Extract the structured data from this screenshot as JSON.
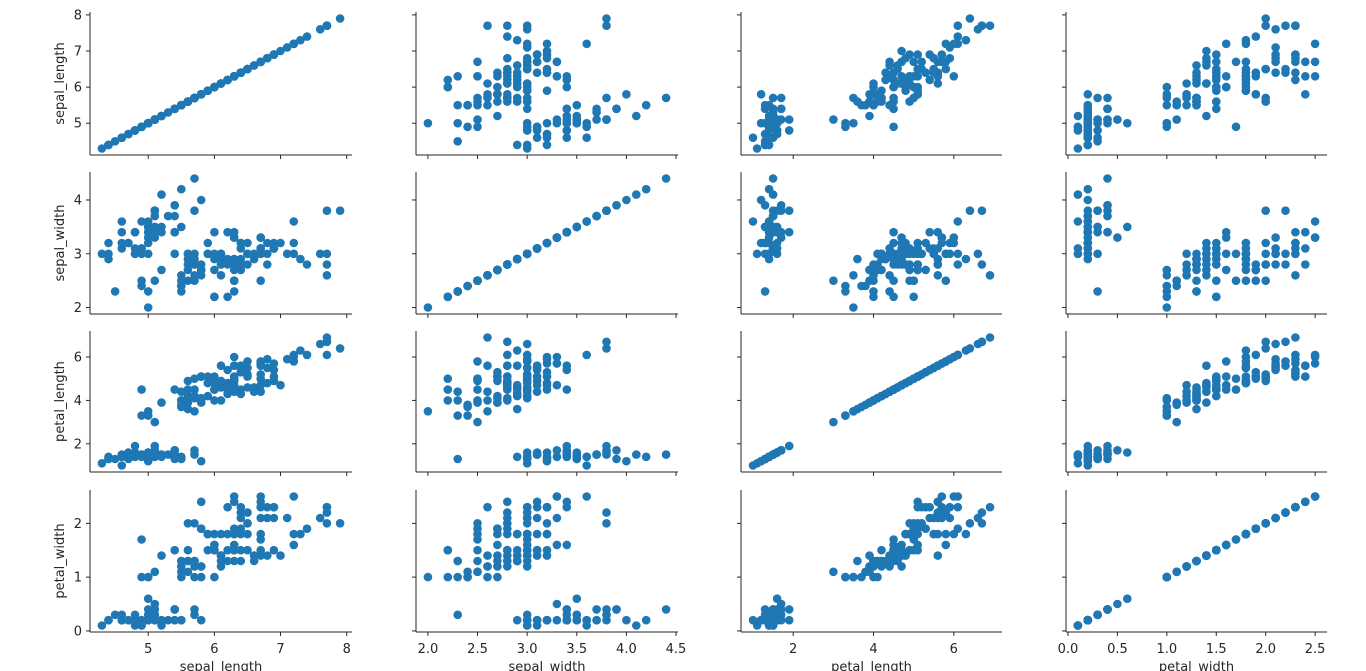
{
  "chart_data": {
    "type": "scatter",
    "layout": "pairplot",
    "variables": [
      "sepal_length",
      "sepal_width",
      "petal_length",
      "petal_width"
    ],
    "axis_labels": {
      "x": [
        "sepal_length",
        "sepal_width",
        "petal_length",
        "petal_width"
      ],
      "y": [
        "sepal_length",
        "sepal_width",
        "petal_length",
        "petal_width"
      ]
    },
    "limits": {
      "sepal_length": [
        4.12,
        8.08
      ],
      "sepal_width": [
        1.88,
        4.52
      ],
      "petal_length": [
        0.7,
        7.2
      ],
      "petal_width": [
        -0.02,
        2.62
      ]
    },
    "ticks": {
      "sepal_length": {
        "values": [
          5,
          6,
          7,
          8
        ],
        "labels": [
          "5",
          "6",
          "7",
          "8"
        ]
      },
      "sepal_width": {
        "values": [
          2.0,
          2.5,
          3.0,
          3.5,
          4.0,
          4.5
        ],
        "labels": [
          "2.0",
          "2.5",
          "3.0",
          "3.5",
          "4.0",
          "4.5"
        ]
      },
      "sepal_width_y": {
        "values": [
          2,
          3,
          4
        ],
        "labels": [
          "2",
          "3",
          "4"
        ]
      },
      "petal_length": {
        "values": [
          2,
          4,
          6
        ],
        "labels": [
          "2",
          "4",
          "6"
        ]
      },
      "petal_width": {
        "values": [
          0.0,
          0.5,
          1.0,
          1.5,
          2.0,
          2.5
        ],
        "labels": [
          "0.0",
          "0.5",
          "1.0",
          "1.5",
          "2.0",
          "2.5"
        ]
      },
      "petal_width_y": {
        "values": [
          0,
          1,
          2
        ],
        "labels": [
          "0",
          "1",
          "2"
        ]
      }
    },
    "point_color": "#1f77b4",
    "grid": false,
    "legend": "none",
    "records": [
      [
        5.1,
        3.5,
        1.4,
        0.2
      ],
      [
        4.9,
        3.0,
        1.4,
        0.2
      ],
      [
        4.7,
        3.2,
        1.3,
        0.2
      ],
      [
        4.6,
        3.1,
        1.5,
        0.2
      ],
      [
        5.0,
        3.6,
        1.4,
        0.2
      ],
      [
        5.4,
        3.9,
        1.7,
        0.4
      ],
      [
        4.6,
        3.4,
        1.4,
        0.3
      ],
      [
        5.0,
        3.4,
        1.5,
        0.2
      ],
      [
        4.4,
        2.9,
        1.4,
        0.2
      ],
      [
        4.9,
        3.1,
        1.5,
        0.1
      ],
      [
        5.4,
        3.7,
        1.5,
        0.2
      ],
      [
        4.8,
        3.4,
        1.6,
        0.2
      ],
      [
        4.8,
        3.0,
        1.4,
        0.1
      ],
      [
        4.3,
        3.0,
        1.1,
        0.1
      ],
      [
        5.8,
        4.0,
        1.2,
        0.2
      ],
      [
        5.7,
        4.4,
        1.5,
        0.4
      ],
      [
        5.4,
        3.9,
        1.3,
        0.4
      ],
      [
        5.1,
        3.5,
        1.4,
        0.3
      ],
      [
        5.7,
        3.8,
        1.7,
        0.3
      ],
      [
        5.1,
        3.8,
        1.5,
        0.3
      ],
      [
        5.4,
        3.4,
        1.7,
        0.2
      ],
      [
        5.1,
        3.7,
        1.5,
        0.4
      ],
      [
        4.6,
        3.6,
        1.0,
        0.2
      ],
      [
        5.1,
        3.3,
        1.7,
        0.5
      ],
      [
        4.8,
        3.4,
        1.9,
        0.2
      ],
      [
        5.0,
        3.0,
        1.6,
        0.2
      ],
      [
        5.0,
        3.4,
        1.6,
        0.4
      ],
      [
        5.2,
        3.5,
        1.5,
        0.2
      ],
      [
        5.2,
        3.4,
        1.4,
        0.2
      ],
      [
        4.7,
        3.2,
        1.6,
        0.2
      ],
      [
        4.8,
        3.1,
        1.6,
        0.2
      ],
      [
        5.4,
        3.4,
        1.5,
        0.4
      ],
      [
        5.2,
        4.1,
        1.5,
        0.1
      ],
      [
        5.5,
        4.2,
        1.4,
        0.2
      ],
      [
        4.9,
        3.1,
        1.5,
        0.2
      ],
      [
        5.0,
        3.2,
        1.2,
        0.2
      ],
      [
        5.5,
        3.5,
        1.3,
        0.2
      ],
      [
        4.9,
        3.6,
        1.4,
        0.1
      ],
      [
        4.4,
        3.0,
        1.3,
        0.2
      ],
      [
        5.1,
        3.4,
        1.5,
        0.2
      ],
      [
        5.0,
        3.5,
        1.3,
        0.3
      ],
      [
        4.5,
        2.3,
        1.3,
        0.3
      ],
      [
        4.4,
        3.2,
        1.3,
        0.2
      ],
      [
        5.0,
        3.5,
        1.6,
        0.6
      ],
      [
        5.1,
        3.8,
        1.9,
        0.4
      ],
      [
        4.8,
        3.0,
        1.4,
        0.3
      ],
      [
        5.1,
        3.8,
        1.6,
        0.2
      ],
      [
        4.6,
        3.2,
        1.4,
        0.2
      ],
      [
        5.3,
        3.7,
        1.5,
        0.2
      ],
      [
        5.0,
        3.3,
        1.4,
        0.2
      ],
      [
        7.0,
        3.2,
        4.7,
        1.4
      ],
      [
        6.4,
        3.2,
        4.5,
        1.5
      ],
      [
        6.9,
        3.1,
        4.9,
        1.5
      ],
      [
        5.5,
        2.3,
        4.0,
        1.3
      ],
      [
        6.5,
        2.8,
        4.6,
        1.5
      ],
      [
        5.7,
        2.8,
        4.5,
        1.3
      ],
      [
        6.3,
        3.3,
        4.7,
        1.6
      ],
      [
        4.9,
        2.4,
        3.3,
        1.0
      ],
      [
        6.6,
        2.9,
        4.6,
        1.3
      ],
      [
        5.2,
        2.7,
        3.9,
        1.4
      ],
      [
        5.0,
        2.0,
        3.5,
        1.0
      ],
      [
        5.9,
        3.0,
        4.2,
        1.5
      ],
      [
        6.0,
        2.2,
        4.0,
        1.0
      ],
      [
        6.1,
        2.9,
        4.7,
        1.4
      ],
      [
        5.6,
        2.9,
        3.6,
        1.3
      ],
      [
        6.7,
        3.1,
        4.4,
        1.4
      ],
      [
        5.6,
        3.0,
        4.5,
        1.5
      ],
      [
        5.8,
        2.7,
        4.1,
        1.0
      ],
      [
        6.2,
        2.2,
        4.5,
        1.5
      ],
      [
        5.6,
        2.5,
        3.9,
        1.1
      ],
      [
        5.9,
        3.2,
        4.8,
        1.8
      ],
      [
        6.1,
        2.8,
        4.0,
        1.3
      ],
      [
        6.3,
        2.5,
        4.9,
        1.5
      ],
      [
        6.1,
        2.8,
        4.7,
        1.2
      ],
      [
        6.4,
        2.9,
        4.3,
        1.3
      ],
      [
        6.6,
        3.0,
        4.4,
        1.4
      ],
      [
        6.8,
        2.8,
        4.8,
        1.4
      ],
      [
        6.7,
        3.0,
        5.0,
        1.7
      ],
      [
        6.0,
        2.9,
        4.5,
        1.5
      ],
      [
        5.7,
        2.6,
        3.5,
        1.0
      ],
      [
        5.5,
        2.4,
        3.8,
        1.1
      ],
      [
        5.5,
        2.4,
        3.7,
        1.0
      ],
      [
        5.8,
        2.7,
        3.9,
        1.2
      ],
      [
        6.0,
        2.7,
        5.1,
        1.6
      ],
      [
        5.4,
        3.0,
        4.5,
        1.5
      ],
      [
        6.0,
        3.4,
        4.5,
        1.6
      ],
      [
        6.7,
        3.1,
        4.7,
        1.5
      ],
      [
        6.3,
        2.3,
        4.4,
        1.3
      ],
      [
        5.6,
        3.0,
        4.1,
        1.3
      ],
      [
        5.5,
        2.5,
        4.0,
        1.3
      ],
      [
        5.5,
        2.6,
        4.4,
        1.2
      ],
      [
        6.1,
        3.0,
        4.6,
        1.4
      ],
      [
        5.8,
        2.6,
        4.0,
        1.2
      ],
      [
        5.0,
        2.3,
        3.3,
        1.0
      ],
      [
        5.6,
        2.7,
        4.2,
        1.3
      ],
      [
        5.7,
        3.0,
        4.2,
        1.2
      ],
      [
        5.7,
        2.9,
        4.2,
        1.3
      ],
      [
        6.2,
        2.9,
        4.3,
        1.3
      ],
      [
        5.1,
        2.5,
        3.0,
        1.1
      ],
      [
        5.7,
        2.8,
        4.1,
        1.3
      ],
      [
        6.3,
        3.3,
        6.0,
        2.5
      ],
      [
        5.8,
        2.7,
        5.1,
        1.9
      ],
      [
        7.1,
        3.0,
        5.9,
        2.1
      ],
      [
        6.3,
        2.9,
        5.6,
        1.8
      ],
      [
        6.5,
        3.0,
        5.8,
        2.2
      ],
      [
        7.6,
        3.0,
        6.6,
        2.1
      ],
      [
        4.9,
        2.5,
        4.5,
        1.7
      ],
      [
        7.3,
        2.9,
        6.3,
        1.8
      ],
      [
        6.7,
        2.5,
        5.8,
        1.8
      ],
      [
        7.2,
        3.6,
        6.1,
        2.5
      ],
      [
        6.5,
        3.2,
        5.1,
        2.0
      ],
      [
        6.4,
        2.7,
        5.3,
        1.9
      ],
      [
        6.8,
        3.0,
        5.5,
        2.1
      ],
      [
        5.7,
        2.5,
        5.0,
        2.0
      ],
      [
        5.8,
        2.8,
        5.1,
        2.4
      ],
      [
        6.4,
        3.2,
        5.3,
        2.3
      ],
      [
        6.5,
        3.0,
        5.5,
        1.8
      ],
      [
        7.7,
        3.8,
        6.7,
        2.2
      ],
      [
        7.7,
        2.6,
        6.9,
        2.3
      ],
      [
        6.0,
        2.2,
        5.0,
        1.5
      ],
      [
        6.9,
        3.2,
        5.7,
        2.3
      ],
      [
        5.6,
        2.8,
        4.9,
        2.0
      ],
      [
        7.7,
        2.8,
        6.7,
        2.0
      ],
      [
        6.3,
        2.7,
        4.9,
        1.8
      ],
      [
        6.7,
        3.3,
        5.7,
        2.1
      ],
      [
        7.2,
        3.2,
        6.0,
        1.8
      ],
      [
        6.2,
        2.8,
        4.8,
        1.8
      ],
      [
        6.1,
        3.0,
        4.9,
        1.8
      ],
      [
        6.4,
        2.8,
        5.6,
        2.1
      ],
      [
        7.2,
        3.0,
        5.8,
        1.6
      ],
      [
        7.4,
        2.8,
        6.1,
        1.9
      ],
      [
        7.9,
        3.8,
        6.4,
        2.0
      ],
      [
        6.4,
        2.8,
        5.6,
        2.2
      ],
      [
        6.3,
        2.8,
        5.1,
        1.5
      ],
      [
        6.1,
        2.6,
        5.6,
        1.4
      ],
      [
        7.7,
        3.0,
        6.1,
        2.3
      ],
      [
        6.3,
        3.4,
        5.6,
        2.4
      ],
      [
        6.4,
        3.1,
        5.5,
        1.8
      ],
      [
        6.0,
        3.0,
        4.8,
        1.8
      ],
      [
        6.9,
        3.1,
        5.4,
        2.1
      ],
      [
        6.7,
        3.1,
        5.6,
        2.4
      ],
      [
        6.9,
        3.1,
        5.1,
        2.3
      ],
      [
        5.8,
        2.7,
        5.1,
        1.9
      ],
      [
        6.8,
        3.2,
        5.9,
        2.3
      ],
      [
        6.7,
        3.3,
        5.7,
        2.5
      ],
      [
        6.7,
        3.0,
        5.2,
        2.3
      ],
      [
        6.3,
        2.5,
        5.0,
        1.9
      ],
      [
        6.5,
        3.0,
        5.2,
        2.0
      ],
      [
        6.2,
        3.4,
        5.4,
        2.3
      ],
      [
        5.9,
        3.0,
        5.1,
        1.8
      ]
    ]
  }
}
